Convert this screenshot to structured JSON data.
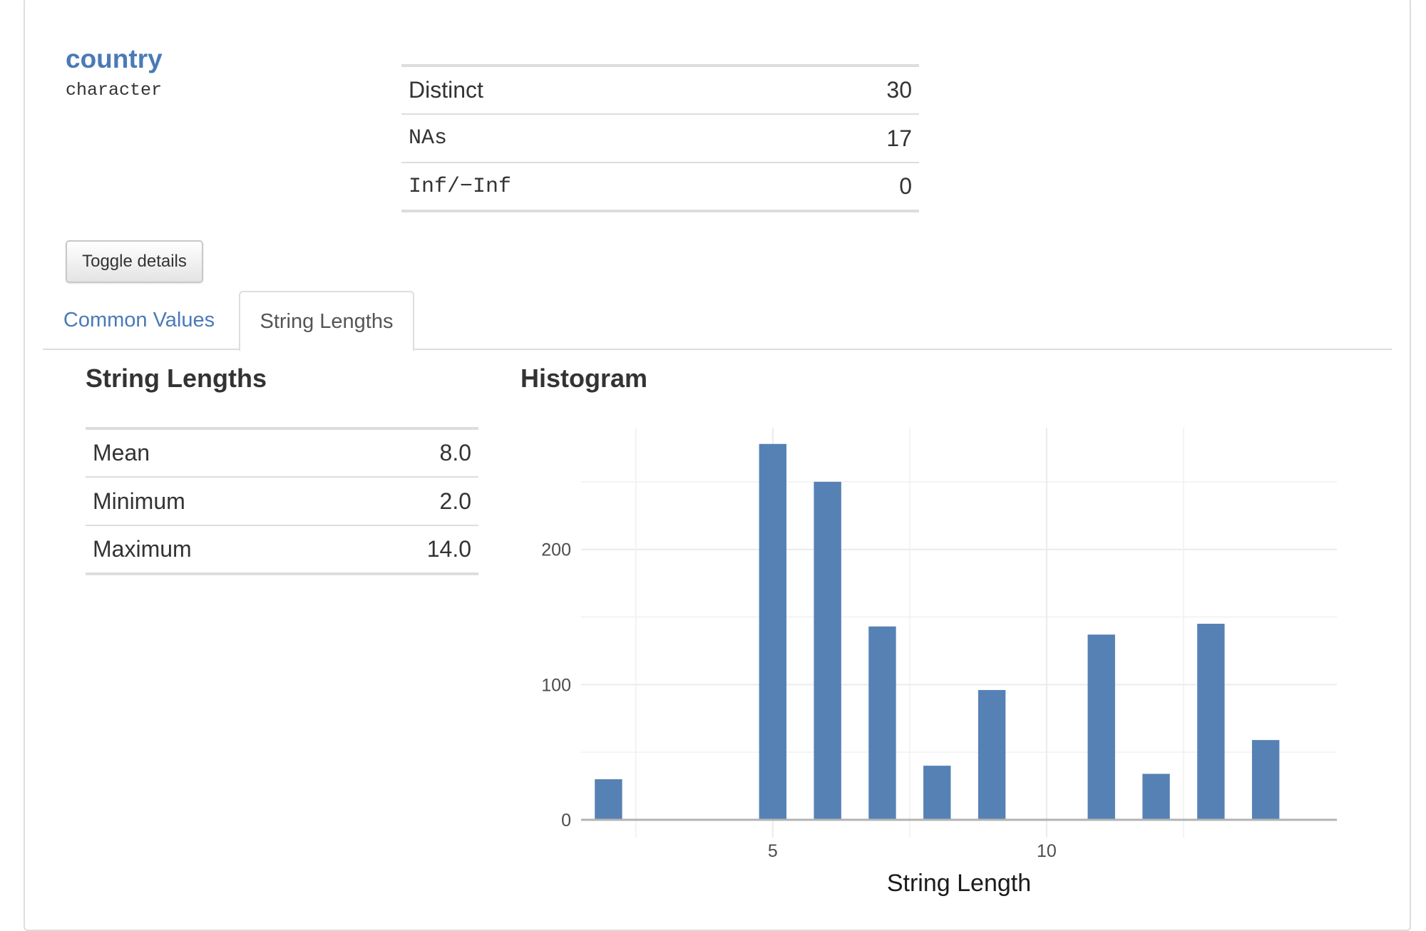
{
  "variable": {
    "name": "country",
    "type": "character"
  },
  "summary": [
    {
      "label": "Distinct",
      "value": "30",
      "mono": false
    },
    {
      "label": "NAs",
      "value": "17",
      "mono": true
    },
    {
      "label": "Inf/−Inf",
      "value": "0",
      "mono": true
    }
  ],
  "toggle_label": "Toggle details",
  "tabs": [
    {
      "label": "Common Values",
      "active": false
    },
    {
      "label": "String Lengths",
      "active": true
    }
  ],
  "string_lengths": {
    "title": "String Lengths",
    "rows": [
      {
        "label": "Mean",
        "value": "8.0"
      },
      {
        "label": "Minimum",
        "value": "2.0"
      },
      {
        "label": "Maximum",
        "value": "14.0"
      }
    ]
  },
  "histogram_title": "Histogram",
  "colors": {
    "link": "#4a7ab7",
    "bar": "#5681b4"
  },
  "chart_data": {
    "type": "bar",
    "title": "Histogram",
    "xlabel": "String Length",
    "ylabel": "",
    "x": [
      2,
      5,
      6,
      7,
      8,
      9,
      11,
      12,
      13,
      14
    ],
    "values": [
      30,
      278,
      250,
      143,
      40,
      96,
      137,
      34,
      145,
      59
    ],
    "xlim": [
      1.5,
      15.3
    ],
    "ylim": [
      0,
      290
    ],
    "x_ticks": [
      5,
      10
    ],
    "y_ticks": [
      0,
      100,
      200
    ],
    "grid": true
  }
}
